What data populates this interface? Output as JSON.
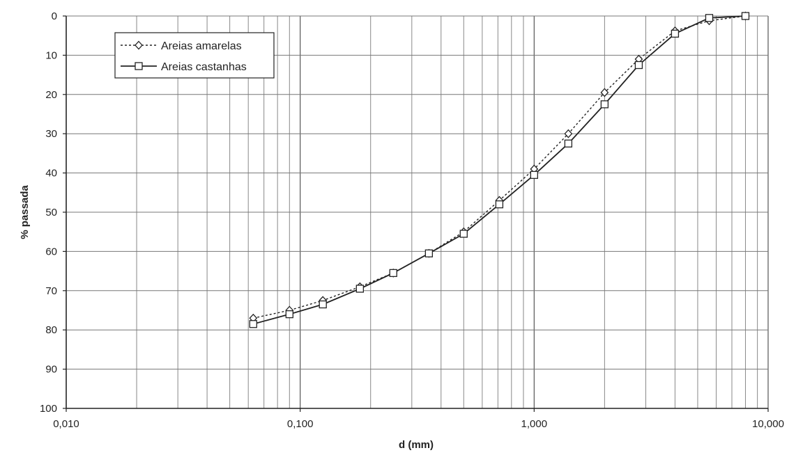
{
  "chart_data": {
    "type": "line",
    "title": "",
    "xlabel": "d (mm)",
    "ylabel": "% passada",
    "xscale": "log",
    "xlim": [
      0.01,
      10
    ],
    "ylim": [
      0,
      100
    ],
    "y_inverted": true,
    "grid": true,
    "legend_position": "top-left",
    "x_tick_labels": [
      "0,010",
      "0,100",
      "1,000",
      "10,000"
    ],
    "y_tick_labels": [
      "0",
      "10",
      "20",
      "30",
      "40",
      "50",
      "60",
      "70",
      "80",
      "90",
      "100"
    ],
    "series": [
      {
        "name": "Areias amarelas",
        "line_style": "dotted",
        "marker": "diamond",
        "color": "#222222",
        "x": [
          0.063,
          0.09,
          0.125,
          0.18,
          0.25,
          0.355,
          0.5,
          0.71,
          1.0,
          1.4,
          2.0,
          2.8,
          4.0,
          5.6,
          8.0
        ],
        "y": [
          77,
          75,
          72.5,
          69,
          65.5,
          60.5,
          55,
          47,
          39,
          30,
          19.5,
          11,
          3.8,
          1.2,
          0
        ]
      },
      {
        "name": "Areias castanhas",
        "line_style": "solid",
        "marker": "square",
        "color": "#222222",
        "x": [
          0.063,
          0.09,
          0.125,
          0.18,
          0.25,
          0.355,
          0.5,
          0.71,
          1.0,
          1.4,
          2.0,
          2.8,
          4.0,
          5.6,
          8.0
        ],
        "y": [
          78.5,
          76,
          73.5,
          69.5,
          65.5,
          60.5,
          55.5,
          48,
          40.5,
          32.5,
          22.5,
          12.5,
          4.5,
          0.5,
          0
        ]
      }
    ]
  }
}
